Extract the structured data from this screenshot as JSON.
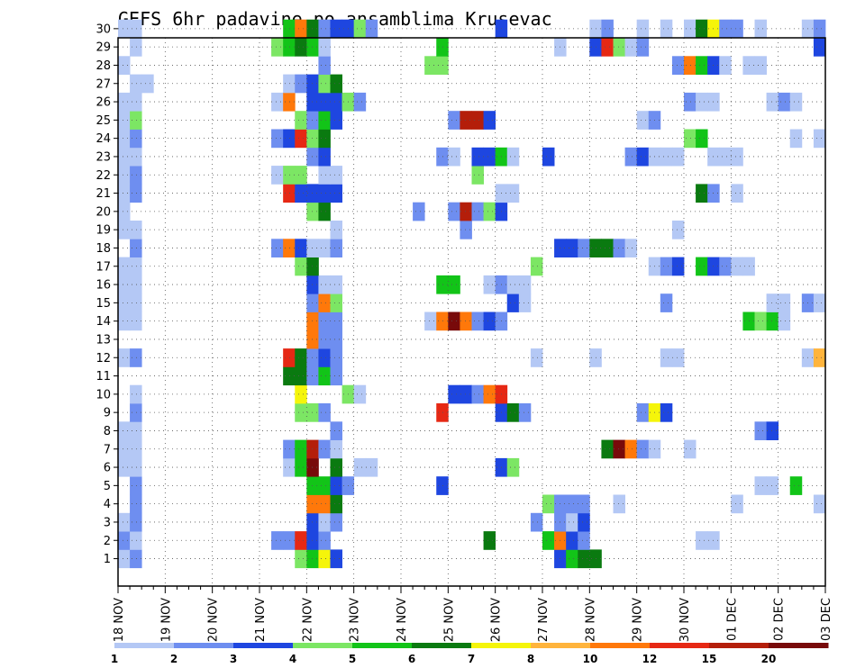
{
  "chart_data": {
    "type": "heatmap",
    "title": "GEFS 6hr padavine po ansamblima Krusevac",
    "y_ticks": [
      "1",
      "2",
      "3",
      "4",
      "5",
      "6",
      "7",
      "8",
      "9",
      "10",
      "11",
      "12",
      "13",
      "14",
      "15",
      "16",
      "17",
      "18",
      "19",
      "20",
      "21",
      "22",
      "23",
      "24",
      "25",
      "26",
      "27",
      "28",
      "29",
      "30"
    ],
    "ylim": [
      0,
      30
    ],
    "x_ticks": [
      "18 NOV",
      "19 NOV",
      "20 NOV",
      "21 NOV",
      "22 NOV",
      "23 NOV",
      "24 NOV",
      "25 NOV",
      "26 NOV",
      "27 NOV",
      "28 NOV",
      "29 NOV",
      "30 NOV",
      "01 DEC",
      "02 DEC",
      "03 DEC"
    ],
    "x_step_hours": 6,
    "x_steps": 60,
    "grid": true,
    "legend": {
      "position": "bottom",
      "labels": [
        "1",
        "2",
        "3",
        "4",
        "5",
        "6",
        "7",
        "8",
        "10",
        "12",
        "15",
        "20"
      ],
      "colors": [
        "#b4c8f5",
        "#6e8ef0",
        "#1e46e0",
        "#7ce664",
        "#12c418",
        "#0a7a10",
        "#f5f50a",
        "#ffb43c",
        "#ff780a",
        "#e62814",
        "#b41e0a",
        "#780a0a"
      ]
    },
    "cells": [
      [
        1,
        0,
        1
      ],
      [
        1,
        1,
        2
      ],
      [
        1,
        15,
        4
      ],
      [
        1,
        16,
        5
      ],
      [
        1,
        17,
        7
      ],
      [
        1,
        18,
        3
      ],
      [
        1,
        37,
        3
      ],
      [
        1,
        38,
        5
      ],
      [
        1,
        39,
        6
      ],
      [
        1,
        40,
        6
      ],
      [
        2,
        0,
        2
      ],
      [
        2,
        1,
        1
      ],
      [
        2,
        13,
        2
      ],
      [
        2,
        14,
        2
      ],
      [
        2,
        15,
        10
      ],
      [
        2,
        16,
        3
      ],
      [
        2,
        17,
        2
      ],
      [
        2,
        31,
        6
      ],
      [
        2,
        36,
        5
      ],
      [
        2,
        37,
        9
      ],
      [
        2,
        38,
        3
      ],
      [
        2,
        39,
        2
      ],
      [
        2,
        49,
        1
      ],
      [
        2,
        50,
        1
      ],
      [
        3,
        0,
        1
      ],
      [
        3,
        1,
        2
      ],
      [
        3,
        16,
        3
      ],
      [
        3,
        17,
        1
      ],
      [
        3,
        18,
        2
      ],
      [
        3,
        35,
        2
      ],
      [
        3,
        37,
        2
      ],
      [
        3,
        38,
        1
      ],
      [
        3,
        39,
        3
      ],
      [
        4,
        1,
        2
      ],
      [
        4,
        16,
        9
      ],
      [
        4,
        17,
        9
      ],
      [
        4,
        18,
        6
      ],
      [
        4,
        36,
        4
      ],
      [
        4,
        37,
        2
      ],
      [
        4,
        38,
        2
      ],
      [
        4,
        39,
        2
      ],
      [
        4,
        42,
        1
      ],
      [
        4,
        52,
        1
      ],
      [
        4,
        59,
        1
      ],
      [
        5,
        1,
        2
      ],
      [
        5,
        16,
        5
      ],
      [
        5,
        17,
        5
      ],
      [
        5,
        18,
        3
      ],
      [
        5,
        19,
        2
      ],
      [
        5,
        27,
        3
      ],
      [
        5,
        54,
        1
      ],
      [
        5,
        55,
        1
      ],
      [
        5,
        57,
        5
      ],
      [
        6,
        0,
        1
      ],
      [
        6,
        1,
        1
      ],
      [
        6,
        14,
        1
      ],
      [
        6,
        15,
        5
      ],
      [
        6,
        16,
        12
      ],
      [
        6,
        18,
        6
      ],
      [
        6,
        20,
        1
      ],
      [
        6,
        21,
        1
      ],
      [
        6,
        32,
        3
      ],
      [
        6,
        33,
        4
      ],
      [
        7,
        0,
        1
      ],
      [
        7,
        1,
        1
      ],
      [
        7,
        14,
        2
      ],
      [
        7,
        15,
        5
      ],
      [
        7,
        16,
        11
      ],
      [
        7,
        17,
        2
      ],
      [
        7,
        18,
        1
      ],
      [
        7,
        41,
        6
      ],
      [
        7,
        42,
        12
      ],
      [
        7,
        43,
        9
      ],
      [
        7,
        44,
        2
      ],
      [
        7,
        45,
        1
      ],
      [
        7,
        48,
        1
      ],
      [
        8,
        0,
        1
      ],
      [
        8,
        1,
        1
      ],
      [
        8,
        18,
        2
      ],
      [
        8,
        54,
        2
      ],
      [
        8,
        55,
        3
      ],
      [
        9,
        1,
        2
      ],
      [
        9,
        15,
        4
      ],
      [
        9,
        16,
        4
      ],
      [
        9,
        17,
        2
      ],
      [
        9,
        27,
        10
      ],
      [
        9,
        32,
        3
      ],
      [
        9,
        33,
        6
      ],
      [
        9,
        34,
        2
      ],
      [
        9,
        44,
        2
      ],
      [
        9,
        45,
        7
      ],
      [
        9,
        46,
        3
      ],
      [
        10,
        1,
        1
      ],
      [
        10,
        15,
        7
      ],
      [
        10,
        19,
        4
      ],
      [
        10,
        20,
        1
      ],
      [
        10,
        28,
        3
      ],
      [
        10,
        29,
        3
      ],
      [
        10,
        30,
        2
      ],
      [
        10,
        31,
        9
      ],
      [
        10,
        32,
        10
      ],
      [
        11,
        14,
        6
      ],
      [
        11,
        15,
        6
      ],
      [
        11,
        16,
        2
      ],
      [
        11,
        17,
        5
      ],
      [
        11,
        18,
        2
      ],
      [
        12,
        0,
        1
      ],
      [
        12,
        1,
        2
      ],
      [
        12,
        14,
        10
      ],
      [
        12,
        15,
        6
      ],
      [
        12,
        16,
        2
      ],
      [
        12,
        17,
        3
      ],
      [
        12,
        18,
        2
      ],
      [
        12,
        35,
        1
      ],
      [
        12,
        40,
        1
      ],
      [
        12,
        46,
        1
      ],
      [
        12,
        47,
        1
      ],
      [
        12,
        58,
        1
      ],
      [
        12,
        59,
        8
      ],
      [
        13,
        16,
        9
      ],
      [
        13,
        17,
        2
      ],
      [
        13,
        18,
        2
      ],
      [
        14,
        0,
        1
      ],
      [
        14,
        1,
        1
      ],
      [
        14,
        16,
        9
      ],
      [
        14,
        17,
        2
      ],
      [
        14,
        18,
        2
      ],
      [
        14,
        26,
        1
      ],
      [
        14,
        27,
        9
      ],
      [
        14,
        28,
        12
      ],
      [
        14,
        29,
        9
      ],
      [
        14,
        30,
        2
      ],
      [
        14,
        31,
        3
      ],
      [
        14,
        32,
        2
      ],
      [
        14,
        53,
        5
      ],
      [
        14,
        54,
        4
      ],
      [
        14,
        55,
        5
      ],
      [
        14,
        56,
        1
      ],
      [
        15,
        0,
        1
      ],
      [
        15,
        1,
        1
      ],
      [
        15,
        16,
        2
      ],
      [
        15,
        17,
        9
      ],
      [
        15,
        18,
        4
      ],
      [
        15,
        33,
        3
      ],
      [
        15,
        34,
        1
      ],
      [
        15,
        46,
        2
      ],
      [
        15,
        55,
        1
      ],
      [
        15,
        56,
        1
      ],
      [
        15,
        58,
        2
      ],
      [
        15,
        59,
        1
      ],
      [
        16,
        0,
        1
      ],
      [
        16,
        1,
        1
      ],
      [
        16,
        16,
        3
      ],
      [
        16,
        17,
        1
      ],
      [
        16,
        18,
        1
      ],
      [
        16,
        27,
        5
      ],
      [
        16,
        28,
        5
      ],
      [
        16,
        31,
        1
      ],
      [
        16,
        32,
        2
      ],
      [
        16,
        33,
        1
      ],
      [
        16,
        34,
        1
      ],
      [
        17,
        0,
        1
      ],
      [
        17,
        1,
        1
      ],
      [
        17,
        15,
        4
      ],
      [
        17,
        16,
        6
      ],
      [
        17,
        35,
        4
      ],
      [
        17,
        45,
        1
      ],
      [
        17,
        46,
        2
      ],
      [
        17,
        47,
        3
      ],
      [
        17,
        49,
        5
      ],
      [
        17,
        50,
        3
      ],
      [
        17,
        51,
        2
      ],
      [
        17,
        52,
        1
      ],
      [
        17,
        53,
        1
      ],
      [
        18,
        1,
        2
      ],
      [
        18,
        13,
        2
      ],
      [
        18,
        14,
        9
      ],
      [
        18,
        15,
        3
      ],
      [
        18,
        16,
        1
      ],
      [
        18,
        17,
        1
      ],
      [
        18,
        18,
        2
      ],
      [
        18,
        37,
        3
      ],
      [
        18,
        38,
        3
      ],
      [
        18,
        39,
        2
      ],
      [
        18,
        40,
        6
      ],
      [
        18,
        41,
        6
      ],
      [
        18,
        42,
        2
      ],
      [
        18,
        43,
        1
      ],
      [
        19,
        0,
        1
      ],
      [
        19,
        1,
        1
      ],
      [
        19,
        18,
        1
      ],
      [
        19,
        29,
        2
      ],
      [
        19,
        47,
        1
      ],
      [
        20,
        0,
        1
      ],
      [
        20,
        16,
        4
      ],
      [
        20,
        17,
        6
      ],
      [
        20,
        25,
        2
      ],
      [
        20,
        28,
        2
      ],
      [
        20,
        29,
        11
      ],
      [
        20,
        30,
        2
      ],
      [
        20,
        31,
        4
      ],
      [
        20,
        32,
        3
      ],
      [
        21,
        0,
        1
      ],
      [
        21,
        1,
        2
      ],
      [
        21,
        14,
        10
      ],
      [
        21,
        15,
        3
      ],
      [
        21,
        16,
        3
      ],
      [
        21,
        17,
        3
      ],
      [
        21,
        18,
        3
      ],
      [
        21,
        32,
        1
      ],
      [
        21,
        33,
        1
      ],
      [
        21,
        49,
        6
      ],
      [
        21,
        50,
        2
      ],
      [
        21,
        52,
        1
      ],
      [
        22,
        0,
        1
      ],
      [
        22,
        1,
        2
      ],
      [
        22,
        13,
        1
      ],
      [
        22,
        14,
        4
      ],
      [
        22,
        15,
        4
      ],
      [
        22,
        17,
        1
      ],
      [
        22,
        18,
        1
      ],
      [
        22,
        30,
        4
      ],
      [
        23,
        0,
        1
      ],
      [
        23,
        1,
        1
      ],
      [
        23,
        16,
        2
      ],
      [
        23,
        17,
        3
      ],
      [
        23,
        27,
        2
      ],
      [
        23,
        28,
        1
      ],
      [
        23,
        30,
        3
      ],
      [
        23,
        31,
        3
      ],
      [
        23,
        32,
        5
      ],
      [
        23,
        33,
        1
      ],
      [
        23,
        36,
        3
      ],
      [
        23,
        43,
        2
      ],
      [
        23,
        44,
        3
      ],
      [
        23,
        45,
        1
      ],
      [
        23,
        46,
        1
      ],
      [
        23,
        47,
        1
      ],
      [
        23,
        50,
        1
      ],
      [
        23,
        51,
        1
      ],
      [
        23,
        52,
        1
      ],
      [
        24,
        0,
        1
      ],
      [
        24,
        1,
        2
      ],
      [
        24,
        13,
        2
      ],
      [
        24,
        14,
        3
      ],
      [
        24,
        15,
        10
      ],
      [
        24,
        16,
        4
      ],
      [
        24,
        17,
        6
      ],
      [
        24,
        48,
        4
      ],
      [
        24,
        49,
        5
      ],
      [
        24,
        57,
        1
      ],
      [
        24,
        59,
        1
      ],
      [
        25,
        0,
        1
      ],
      [
        25,
        1,
        4
      ],
      [
        25,
        15,
        4
      ],
      [
        25,
        16,
        2
      ],
      [
        25,
        17,
        5
      ],
      [
        25,
        18,
        3
      ],
      [
        25,
        28,
        2
      ],
      [
        25,
        29,
        11
      ],
      [
        25,
        30,
        11
      ],
      [
        25,
        31,
        3
      ],
      [
        25,
        44,
        1
      ],
      [
        25,
        45,
        2
      ],
      [
        26,
        0,
        1
      ],
      [
        26,
        1,
        1
      ],
      [
        26,
        13,
        1
      ],
      [
        26,
        14,
        9
      ],
      [
        26,
        16,
        3
      ],
      [
        26,
        17,
        3
      ],
      [
        26,
        18,
        3
      ],
      [
        26,
        19,
        4
      ],
      [
        26,
        20,
        2
      ],
      [
        26,
        48,
        2
      ],
      [
        26,
        49,
        1
      ],
      [
        26,
        50,
        1
      ],
      [
        26,
        55,
        1
      ],
      [
        26,
        56,
        2
      ],
      [
        26,
        57,
        1
      ],
      [
        27,
        1,
        1
      ],
      [
        27,
        2,
        1
      ],
      [
        27,
        14,
        1
      ],
      [
        27,
        15,
        2
      ],
      [
        27,
        16,
        3
      ],
      [
        27,
        17,
        4
      ],
      [
        27,
        18,
        6
      ],
      [
        28,
        0,
        1
      ],
      [
        28,
        17,
        2
      ],
      [
        28,
        26,
        4
      ],
      [
        28,
        27,
        4
      ],
      [
        28,
        47,
        2
      ],
      [
        28,
        48,
        9
      ],
      [
        28,
        49,
        5
      ],
      [
        28,
        50,
        3
      ],
      [
        28,
        51,
        1
      ],
      [
        28,
        53,
        1
      ],
      [
        28,
        54,
        1
      ],
      [
        29,
        1,
        1
      ],
      [
        29,
        13,
        4
      ],
      [
        29,
        14,
        5
      ],
      [
        29,
        15,
        6
      ],
      [
        29,
        16,
        5
      ],
      [
        29,
        17,
        1
      ],
      [
        29,
        27,
        5
      ],
      [
        29,
        37,
        1
      ],
      [
        29,
        40,
        3
      ],
      [
        29,
        41,
        10
      ],
      [
        29,
        42,
        4
      ],
      [
        29,
        43,
        1
      ],
      [
        29,
        44,
        2
      ],
      [
        29,
        59,
        3
      ],
      [
        30,
        0,
        1
      ],
      [
        30,
        1,
        1
      ],
      [
        30,
        14,
        5
      ],
      [
        30,
        15,
        9
      ],
      [
        30,
        16,
        6
      ],
      [
        30,
        17,
        2
      ],
      [
        30,
        18,
        3
      ],
      [
        30,
        19,
        3
      ],
      [
        30,
        20,
        4
      ],
      [
        30,
        21,
        2
      ],
      [
        30,
        32,
        3
      ],
      [
        30,
        40,
        1
      ],
      [
        30,
        41,
        2
      ],
      [
        30,
        44,
        1
      ],
      [
        30,
        46,
        1
      ],
      [
        30,
        48,
        1
      ],
      [
        30,
        49,
        6
      ],
      [
        30,
        50,
        7
      ],
      [
        30,
        51,
        2
      ],
      [
        30,
        52,
        2
      ],
      [
        30,
        54,
        1
      ],
      [
        30,
        58,
        1
      ],
      [
        30,
        59,
        2
      ]
    ]
  }
}
